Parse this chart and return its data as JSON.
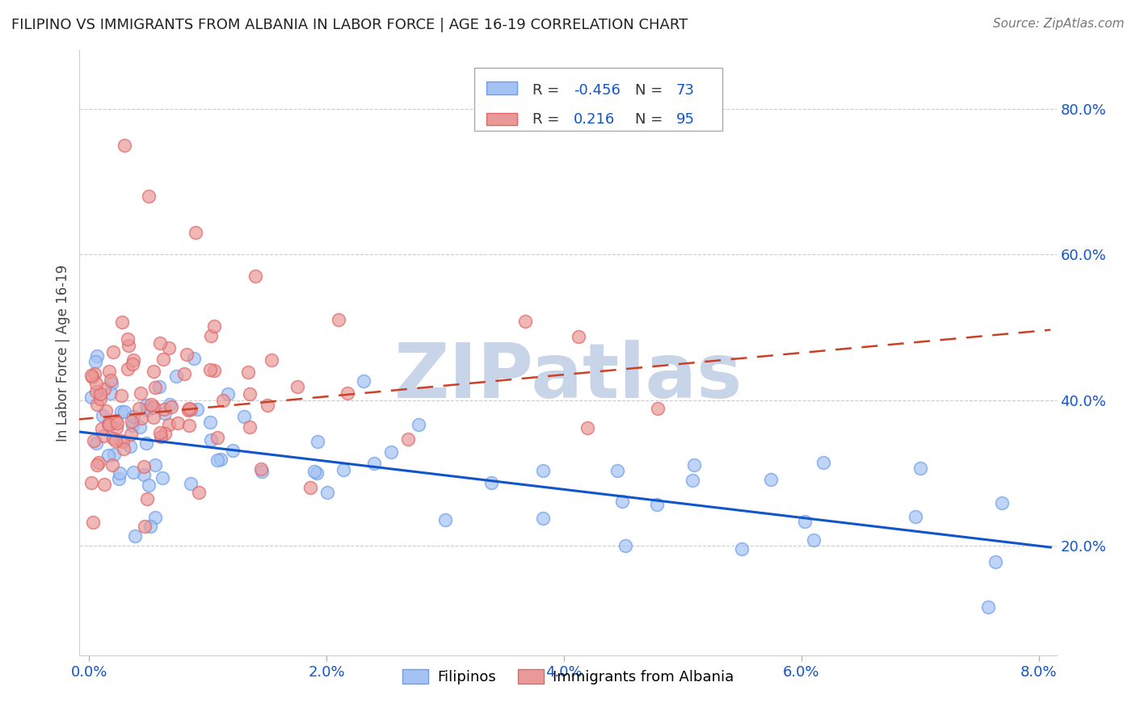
{
  "title": "FILIPINO VS IMMIGRANTS FROM ALBANIA IN LABOR FORCE | AGE 16-19 CORRELATION CHART",
  "source": "Source: ZipAtlas.com",
  "ylabel": "In Labor Force | Age 16-19",
  "xtick_labels": [
    "0.0%",
    "2.0%",
    "4.0%",
    "6.0%",
    "8.0%"
  ],
  "ytick_labels": [
    "20.0%",
    "40.0%",
    "60.0%",
    "80.0%"
  ],
  "legend_r_blue": "-0.456",
  "legend_n_blue": "73",
  "legend_r_pink": "0.216",
  "legend_n_pink": "95",
  "blue_color": "#a4c2f4",
  "pink_color": "#ea9999",
  "blue_edge": "#6d9eeb",
  "pink_edge": "#e06666",
  "trend_blue": "#1155cc",
  "trend_pink": "#cc4125",
  "watermark": "ZIPatlas",
  "watermark_color": "#c8d4e8",
  "legend_text_color": "#1155cc",
  "legend_label_color": "#333333",
  "axis_color": "#1155cc",
  "title_color": "#222222",
  "grid_color": "#cccccc"
}
